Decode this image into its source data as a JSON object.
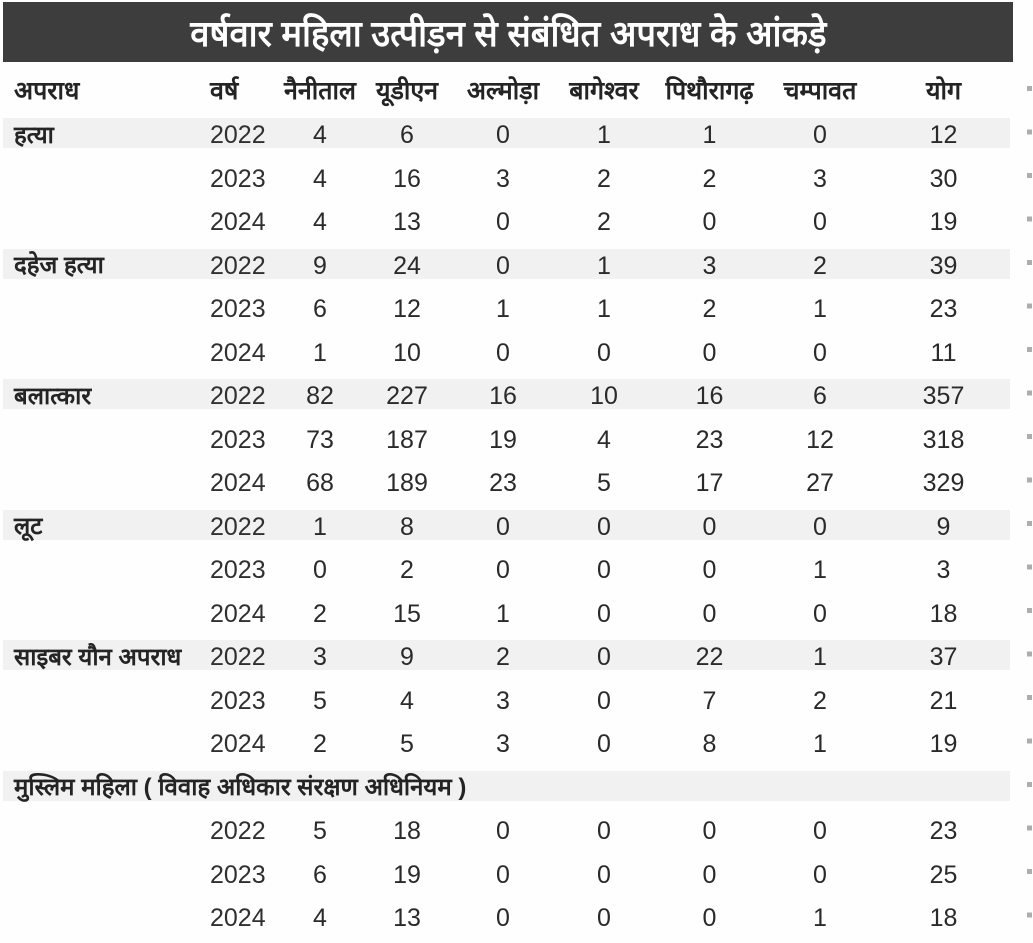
{
  "title": "वर्षवार महिला उत्पीड़न से संबंधित अपराध के आंकड़े",
  "colors": {
    "banner": "#3d3d3d",
    "banner_text": "#ffffff",
    "row_highlight": "#f1f1f1",
    "text": "#2b2b2b",
    "page_bg": "#fefefe"
  },
  "chart_data": {
    "type": "table",
    "title": "वर्षवार महिला उत्पीड़न से संबंधित अपराध के आंकड़े",
    "columns": [
      "अपराध",
      "वर्ष",
      "नैनीताल",
      "यूडीएन",
      "अल्मोड़ा",
      "बागेश्वर",
      "पिथौरागढ़",
      "चम्पावत",
      "योग"
    ],
    "groups": [
      {
        "crime": "हत्या",
        "label_row": false,
        "rows": [
          {
            "year": "2022",
            "values": [
              4,
              6,
              0,
              1,
              1,
              0,
              12
            ]
          },
          {
            "year": "2023",
            "values": [
              4,
              16,
              3,
              2,
              2,
              3,
              30
            ]
          },
          {
            "year": "2024",
            "values": [
              4,
              13,
              0,
              2,
              0,
              0,
              19
            ]
          }
        ]
      },
      {
        "crime": "दहेज हत्या",
        "label_row": false,
        "rows": [
          {
            "year": "2022",
            "values": [
              9,
              24,
              0,
              1,
              3,
              2,
              39
            ]
          },
          {
            "year": "2023",
            "values": [
              6,
              12,
              1,
              1,
              2,
              1,
              23
            ]
          },
          {
            "year": "2024",
            "values": [
              1,
              10,
              0,
              0,
              0,
              0,
              11
            ]
          }
        ]
      },
      {
        "crime": "बलात्कार",
        "label_row": false,
        "rows": [
          {
            "year": "2022",
            "values": [
              82,
              227,
              16,
              10,
              16,
              6,
              357
            ]
          },
          {
            "year": "2023",
            "values": [
              73,
              187,
              19,
              4,
              23,
              12,
              318
            ]
          },
          {
            "year": "2024",
            "values": [
              68,
              189,
              23,
              5,
              17,
              27,
              329
            ]
          }
        ]
      },
      {
        "crime": "लूट",
        "label_row": false,
        "rows": [
          {
            "year": "2022",
            "values": [
              1,
              8,
              0,
              0,
              0,
              0,
              9
            ]
          },
          {
            "year": "2023",
            "values": [
              0,
              2,
              0,
              0,
              0,
              1,
              3
            ]
          },
          {
            "year": "2024",
            "values": [
              2,
              15,
              1,
              0,
              0,
              0,
              18
            ]
          }
        ]
      },
      {
        "crime": "साइबर यौन अपराध",
        "label_row": false,
        "rows": [
          {
            "year": "2022",
            "values": [
              3,
              9,
              2,
              0,
              22,
              1,
              37
            ]
          },
          {
            "year": "2023",
            "values": [
              5,
              4,
              3,
              0,
              7,
              2,
              21
            ]
          },
          {
            "year": "2024",
            "values": [
              2,
              5,
              3,
              0,
              8,
              1,
              19
            ]
          }
        ]
      },
      {
        "crime": "मुस्लिम महिला ( विवाह अधिकार संरक्षण अधिनियम )",
        "label_row": true,
        "rows": [
          {
            "year": "2022",
            "values": [
              5,
              18,
              0,
              0,
              0,
              0,
              23
            ]
          },
          {
            "year": "2023",
            "values": [
              6,
              19,
              0,
              0,
              0,
              0,
              25
            ]
          },
          {
            "year": "2024",
            "values": [
              4,
              13,
              0,
              0,
              0,
              1,
              18
            ]
          }
        ]
      }
    ]
  }
}
